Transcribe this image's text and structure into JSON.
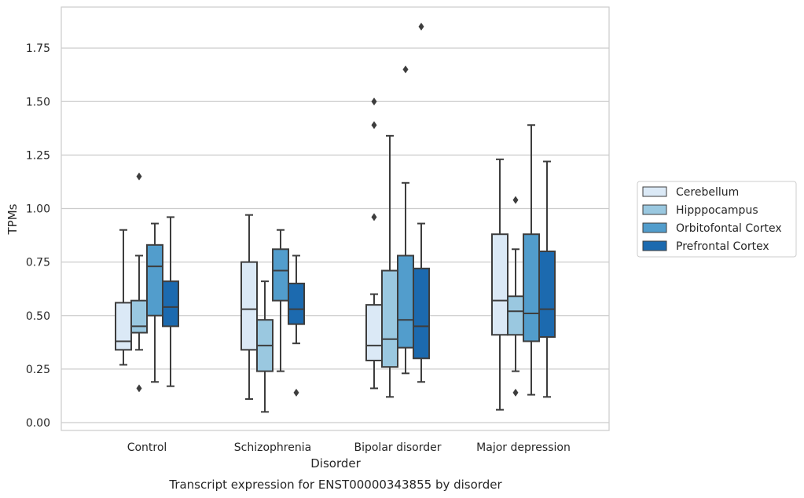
{
  "chart_data": {
    "type": "box",
    "title": "",
    "caption": "Transcript expression for ENST00000343855 by disorder",
    "xlabel": "Disorder",
    "ylabel": "TPMs",
    "ylim": [
      -0.03,
      1.95
    ],
    "yticks": [
      0.0,
      0.25,
      0.5,
      0.75,
      1.0,
      1.25,
      1.5,
      1.75
    ],
    "ytick_labels": [
      "0.00",
      "0.25",
      "0.50",
      "0.75",
      "1.00",
      "1.25",
      "1.50",
      "1.75"
    ],
    "grid": true,
    "legend_placement": "right",
    "categories": [
      "Control",
      "Schizophrenia",
      "Bipolar disorder",
      "Major depression"
    ],
    "series": [
      {
        "name": "Cerebellum",
        "color": "#dbe9f6",
        "boxes": [
          {
            "whislo": 0.27,
            "q1": 0.34,
            "med": 0.38,
            "q3": 0.56,
            "whishi": 0.9,
            "fliers": []
          },
          {
            "whislo": 0.11,
            "q1": 0.34,
            "med": 0.53,
            "q3": 0.75,
            "whishi": 0.97,
            "fliers": []
          },
          {
            "whislo": 0.16,
            "q1": 0.29,
            "med": 0.36,
            "q3": 0.55,
            "whishi": 0.6,
            "fliers": [
              0.96,
              1.39,
              1.5
            ]
          },
          {
            "whislo": 0.06,
            "q1": 0.41,
            "med": 0.57,
            "q3": 0.88,
            "whishi": 1.23,
            "fliers": []
          }
        ]
      },
      {
        "name": "Hipppocampus",
        "color": "#9ac8e0",
        "boxes": [
          {
            "whislo": 0.34,
            "q1": 0.42,
            "med": 0.45,
            "q3": 0.57,
            "whishi": 0.78,
            "fliers": [
              0.16,
              1.15
            ]
          },
          {
            "whislo": 0.05,
            "q1": 0.24,
            "med": 0.36,
            "q3": 0.48,
            "whishi": 0.66,
            "fliers": []
          },
          {
            "whislo": 0.12,
            "q1": 0.26,
            "med": 0.39,
            "q3": 0.71,
            "whishi": 1.34,
            "fliers": []
          },
          {
            "whislo": 0.24,
            "q1": 0.41,
            "med": 0.52,
            "q3": 0.59,
            "whishi": 0.81,
            "fliers": [
              0.14,
              1.04
            ]
          }
        ]
      },
      {
        "name": "Orbitofontal Cortex",
        "color": "#529dcc",
        "boxes": [
          {
            "whislo": 0.19,
            "q1": 0.5,
            "med": 0.73,
            "q3": 0.83,
            "whishi": 0.93,
            "fliers": []
          },
          {
            "whislo": 0.24,
            "q1": 0.57,
            "med": 0.71,
            "q3": 0.81,
            "whishi": 0.9,
            "fliers": []
          },
          {
            "whislo": 0.23,
            "q1": 0.35,
            "med": 0.48,
            "q3": 0.78,
            "whishi": 1.12,
            "fliers": [
              1.65
            ]
          },
          {
            "whislo": 0.13,
            "q1": 0.38,
            "med": 0.51,
            "q3": 0.88,
            "whishi": 1.39,
            "fliers": []
          }
        ]
      },
      {
        "name": "Prefrontal Cortex",
        "color": "#1c6aaf",
        "boxes": [
          {
            "whislo": 0.17,
            "q1": 0.45,
            "med": 0.54,
            "q3": 0.66,
            "whishi": 0.96,
            "fliers": []
          },
          {
            "whislo": 0.37,
            "q1": 0.46,
            "med": 0.53,
            "q3": 0.65,
            "whishi": 0.78,
            "fliers": [
              0.14
            ]
          },
          {
            "whislo": 0.19,
            "q1": 0.3,
            "med": 0.45,
            "q3": 0.72,
            "whishi": 0.93,
            "fliers": [
              1.85
            ]
          },
          {
            "whislo": 0.12,
            "q1": 0.4,
            "med": 0.53,
            "q3": 0.8,
            "whishi": 1.22,
            "fliers": []
          }
        ]
      }
    ]
  }
}
